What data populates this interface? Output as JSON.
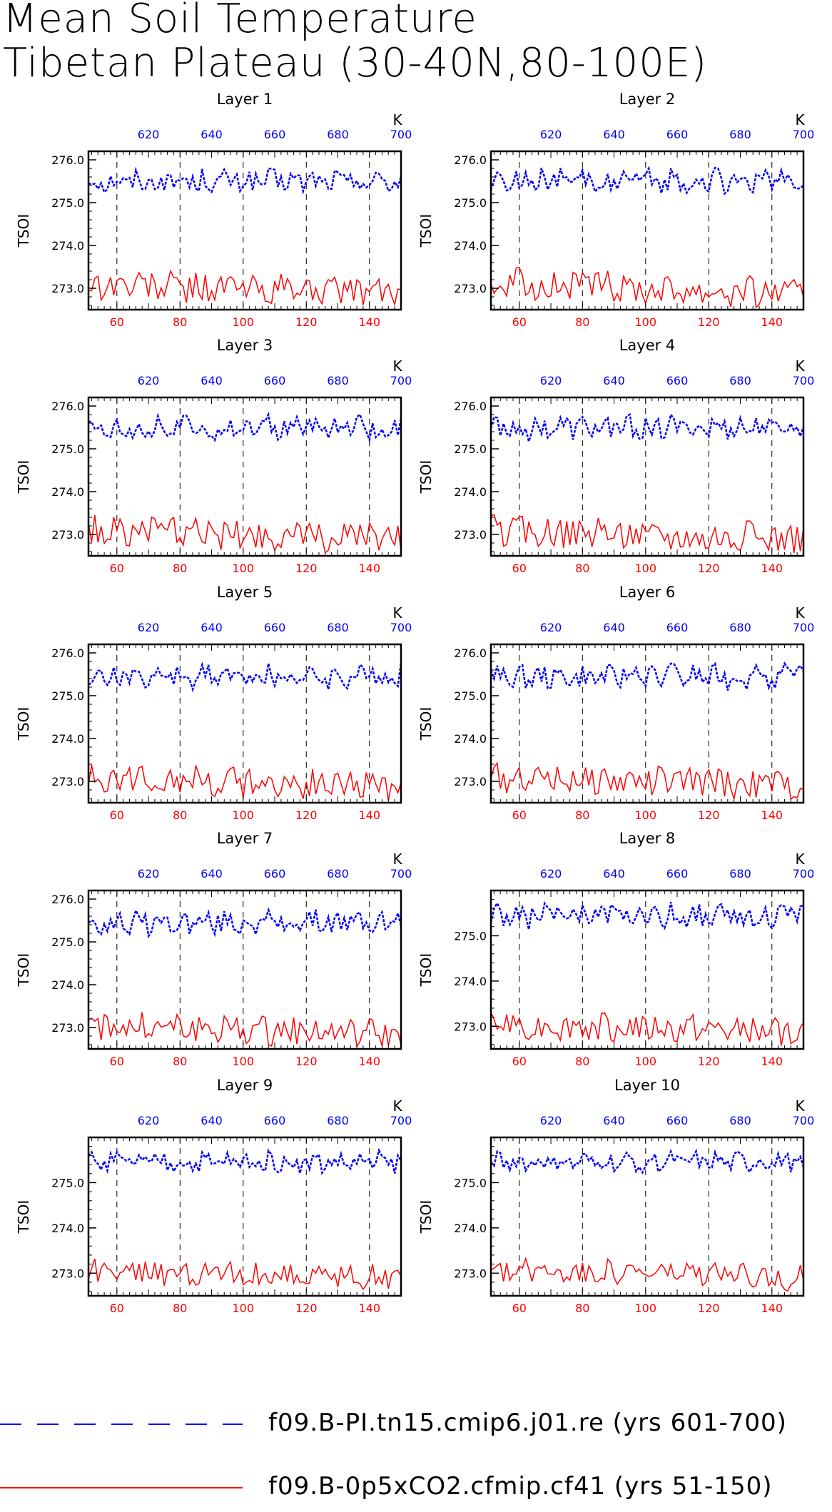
{
  "title_lines": [
    "Mean Soil Temperature",
    "Tibetan Plateau (30-40N,80-100E)"
  ],
  "ylabel": "TSOI",
  "top_axis_unit": "K",
  "colors": {
    "top_series": "#0000ff",
    "bottom_series": "#ff0000",
    "axis": "#000000",
    "grid": "#000000"
  },
  "legend": [
    {
      "label": "f09.B-PI.tn15.cmip6.j01.re (yrs 601-700)",
      "color": "#0000ff",
      "style": "dashed"
    },
    {
      "label": "f09.B-0p5xCO2.cfmip.cf41 (yrs 51-150)",
      "color": "#ff0000",
      "style": "solid"
    }
  ],
  "chart_data": [
    {
      "type": "line",
      "title": "Layer 1",
      "ylabel": "TSOI",
      "x_bottom_range": [
        51,
        150
      ],
      "x_top_range": [
        601,
        700
      ],
      "ylim": [
        272.5,
        276.2
      ],
      "y_ticks": [
        "273.0",
        "274.0",
        "275.0",
        "276.0"
      ],
      "x_bottom_ticks": [
        "60",
        "80",
        "100",
        "120",
        "140"
      ],
      "x_top_ticks": [
        "620",
        "640",
        "660",
        "680",
        "700"
      ],
      "grid": "vertical dashed at 60,80,100,120,140",
      "series": [
        {
          "name": "f09.B-PI.tn15.cmip6.j01.re (yrs 601-700)",
          "axis": "top",
          "x_range": [
            601,
            700
          ],
          "mean": 275.5,
          "amplitude": 0.25
        },
        {
          "name": "f09.B-0p5xCO2.cfmip.cf41 (yrs 51-150)",
          "axis": "bottom",
          "x_range": [
            51,
            150
          ],
          "mean": 273.1,
          "amplitude": 0.35
        }
      ]
    },
    {
      "type": "line",
      "title": "Layer 2",
      "ylabel": "TSOI",
      "x_bottom_range": [
        51,
        150
      ],
      "x_top_range": [
        601,
        700
      ],
      "ylim": [
        272.5,
        276.2
      ],
      "y_ticks": [
        "273.0",
        "274.0",
        "275.0",
        "276.0"
      ],
      "x_bottom_ticks": [
        "60",
        "80",
        "100",
        "120",
        "140"
      ],
      "x_top_ticks": [
        "620",
        "640",
        "660",
        "680",
        "700"
      ],
      "grid": "vertical dashed at 60,80,100,120,140",
      "series": [
        {
          "name": "f09.B-PI.tn15.cmip6.j01.re (yrs 601-700)",
          "axis": "top",
          "x_range": [
            601,
            700
          ],
          "mean": 275.5,
          "amplitude": 0.25
        },
        {
          "name": "f09.B-0p5xCO2.cfmip.cf41 (yrs 51-150)",
          "axis": "bottom",
          "x_range": [
            51,
            150
          ],
          "mean": 273.1,
          "amplitude": 0.35
        }
      ]
    },
    {
      "type": "line",
      "title": "Layer 3",
      "ylabel": "TSOI",
      "x_bottom_range": [
        51,
        150
      ],
      "x_top_range": [
        601,
        700
      ],
      "ylim": [
        272.5,
        276.2
      ],
      "y_ticks": [
        "273.0",
        "274.0",
        "275.0",
        "276.0"
      ],
      "x_bottom_ticks": [
        "60",
        "80",
        "100",
        "120",
        "140"
      ],
      "x_top_ticks": [
        "620",
        "640",
        "660",
        "680",
        "700"
      ],
      "grid": "vertical dashed at 60,80,100,120,140",
      "series": [
        {
          "name": "f09.B-PI.tn15.cmip6.j01.re (yrs 601-700)",
          "axis": "top",
          "x_range": [
            601,
            700
          ],
          "mean": 275.5,
          "amplitude": 0.25
        },
        {
          "name": "f09.B-0p5xCO2.cfmip.cf41 (yrs 51-150)",
          "axis": "bottom",
          "x_range": [
            51,
            150
          ],
          "mean": 273.1,
          "amplitude": 0.35
        }
      ]
    },
    {
      "type": "line",
      "title": "Layer 4",
      "ylabel": "TSOI",
      "x_bottom_range": [
        51,
        150
      ],
      "x_top_range": [
        601,
        700
      ],
      "ylim": [
        272.5,
        276.2
      ],
      "y_ticks": [
        "273.0",
        "274.0",
        "275.0",
        "276.0"
      ],
      "x_bottom_ticks": [
        "60",
        "80",
        "100",
        "120",
        "140"
      ],
      "x_top_ticks": [
        "620",
        "640",
        "660",
        "680",
        "700"
      ],
      "grid": "vertical dashed at 60,80,100,120,140",
      "series": [
        {
          "name": "f09.B-PI.tn15.cmip6.j01.re (yrs 601-700)",
          "axis": "top",
          "x_range": [
            601,
            700
          ],
          "mean": 275.5,
          "amplitude": 0.25
        },
        {
          "name": "f09.B-0p5xCO2.cfmip.cf41 (yrs 51-150)",
          "axis": "bottom",
          "x_range": [
            51,
            150
          ],
          "mean": 273.1,
          "amplitude": 0.35
        }
      ]
    },
    {
      "type": "line",
      "title": "Layer 5",
      "ylabel": "TSOI",
      "x_bottom_range": [
        51,
        150
      ],
      "x_top_range": [
        601,
        700
      ],
      "ylim": [
        272.5,
        276.2
      ],
      "y_ticks": [
        "273.0",
        "274.0",
        "275.0",
        "276.0"
      ],
      "x_bottom_ticks": [
        "60",
        "80",
        "100",
        "120",
        "140"
      ],
      "x_top_ticks": [
        "620",
        "640",
        "660",
        "680",
        "700"
      ],
      "grid": "vertical dashed at 60,80,100,120,140",
      "series": [
        {
          "name": "f09.B-PI.tn15.cmip6.j01.re (yrs 601-700)",
          "axis": "top",
          "x_range": [
            601,
            700
          ],
          "mean": 275.45,
          "amplitude": 0.25
        },
        {
          "name": "f09.B-0p5xCO2.cfmip.cf41 (yrs 51-150)",
          "axis": "bottom",
          "x_range": [
            51,
            150
          ],
          "mean": 273.1,
          "amplitude": 0.33
        }
      ]
    },
    {
      "type": "line",
      "title": "Layer 6",
      "ylabel": "TSOI",
      "x_bottom_range": [
        51,
        150
      ],
      "x_top_range": [
        601,
        700
      ],
      "ylim": [
        272.5,
        276.2
      ],
      "y_ticks": [
        "273.0",
        "274.0",
        "275.0",
        "276.0"
      ],
      "x_bottom_ticks": [
        "60",
        "80",
        "100",
        "120",
        "140"
      ],
      "x_top_ticks": [
        "620",
        "640",
        "660",
        "680",
        "700"
      ],
      "grid": "vertical dashed at 60,80,100,120,140",
      "series": [
        {
          "name": "f09.B-PI.tn15.cmip6.j01.re (yrs 601-700)",
          "axis": "top",
          "x_range": [
            601,
            700
          ],
          "mean": 275.45,
          "amplitude": 0.25
        },
        {
          "name": "f09.B-0p5xCO2.cfmip.cf41 (yrs 51-150)",
          "axis": "bottom",
          "x_range": [
            51,
            150
          ],
          "mean": 273.1,
          "amplitude": 0.33
        }
      ]
    },
    {
      "type": "line",
      "title": "Layer 7",
      "ylabel": "TSOI",
      "x_bottom_range": [
        51,
        150
      ],
      "x_top_range": [
        601,
        700
      ],
      "ylim": [
        272.5,
        276.2
      ],
      "y_ticks": [
        "273.0",
        "274.0",
        "275.0",
        "276.0"
      ],
      "x_bottom_ticks": [
        "60",
        "80",
        "100",
        "120",
        "140"
      ],
      "x_top_ticks": [
        "620",
        "640",
        "660",
        "680",
        "700"
      ],
      "grid": "vertical dashed at 60,80,100,120,140",
      "series": [
        {
          "name": "f09.B-PI.tn15.cmip6.j01.re (yrs 601-700)",
          "axis": "top",
          "x_range": [
            601,
            700
          ],
          "mean": 275.45,
          "amplitude": 0.24
        },
        {
          "name": "f09.B-0p5xCO2.cfmip.cf41 (yrs 51-150)",
          "axis": "bottom",
          "x_range": [
            51,
            150
          ],
          "mean": 273.05,
          "amplitude": 0.32
        }
      ]
    },
    {
      "type": "line",
      "title": "Layer 8",
      "ylabel": "TSOI",
      "x_bottom_range": [
        51,
        150
      ],
      "x_top_range": [
        601,
        700
      ],
      "ylim": [
        272.5,
        276.0
      ],
      "y_ticks": [
        "273.0",
        "274.0",
        "275.0"
      ],
      "x_bottom_ticks": [
        "60",
        "80",
        "100",
        "120",
        "140"
      ],
      "x_top_ticks": [
        "620",
        "640",
        "660",
        "680",
        "700"
      ],
      "grid": "vertical dashed at 60,80,100,120,140",
      "series": [
        {
          "name": "f09.B-PI.tn15.cmip6.j01.re (yrs 601-700)",
          "axis": "top",
          "x_range": [
            601,
            700
          ],
          "mean": 275.45,
          "amplitude": 0.24
        },
        {
          "name": "f09.B-0p5xCO2.cfmip.cf41 (yrs 51-150)",
          "axis": "bottom",
          "x_range": [
            51,
            150
          ],
          "mean": 273.05,
          "amplitude": 0.3
        }
      ]
    },
    {
      "type": "line",
      "title": "Layer 9",
      "ylabel": "TSOI",
      "x_bottom_range": [
        51,
        150
      ],
      "x_top_range": [
        601,
        700
      ],
      "ylim": [
        272.5,
        276.0
      ],
      "y_ticks": [
        "273.0",
        "274.0",
        "275.0"
      ],
      "x_bottom_ticks": [
        "60",
        "80",
        "100",
        "120",
        "140"
      ],
      "x_top_ticks": [
        "620",
        "640",
        "660",
        "680",
        "700"
      ],
      "grid": "vertical dashed at 60,80,100,120,140",
      "series": [
        {
          "name": "f09.B-PI.tn15.cmip6.j01.re (yrs 601-700)",
          "axis": "top",
          "x_range": [
            601,
            700
          ],
          "mean": 275.45,
          "amplitude": 0.2
        },
        {
          "name": "f09.B-0p5xCO2.cfmip.cf41 (yrs 51-150)",
          "axis": "bottom",
          "x_range": [
            51,
            150
          ],
          "mean": 273.05,
          "amplitude": 0.28
        }
      ]
    },
    {
      "type": "line",
      "title": "Layer 10",
      "ylabel": "TSOI",
      "x_bottom_range": [
        51,
        150
      ],
      "x_top_range": [
        601,
        700
      ],
      "ylim": [
        272.5,
        276.0
      ],
      "y_ticks": [
        "273.0",
        "274.0",
        "275.0"
      ],
      "x_bottom_ticks": [
        "60",
        "80",
        "100",
        "120",
        "140"
      ],
      "x_top_ticks": [
        "620",
        "640",
        "660",
        "680",
        "700"
      ],
      "grid": "vertical dashed at 60,80,100,120,140",
      "series": [
        {
          "name": "f09.B-PI.tn15.cmip6.j01.re (yrs 601-700)",
          "axis": "top",
          "x_range": [
            601,
            700
          ],
          "mean": 275.45,
          "amplitude": 0.18
        },
        {
          "name": "f09.B-0p5xCO2.cfmip.cf41 (yrs 51-150)",
          "axis": "bottom",
          "x_range": [
            51,
            150
          ],
          "mean": 273.1,
          "amplitude": 0.25
        }
      ]
    }
  ]
}
